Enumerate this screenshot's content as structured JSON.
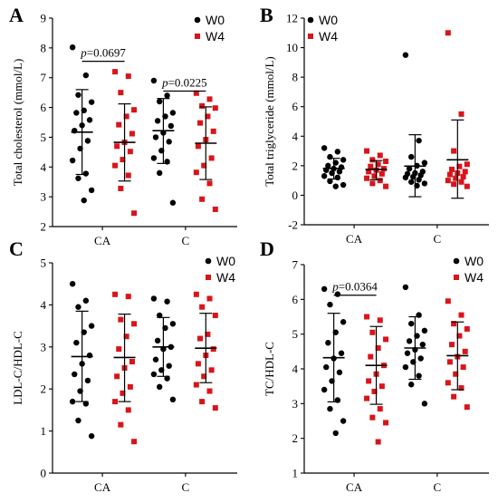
{
  "colors": {
    "W0": "#000000",
    "W4": "#d9141a"
  },
  "chart_data": [
    {
      "panel": "A",
      "type": "scatter",
      "ylabel": "Total cholesterol (mmol/L)",
      "ylim": [
        2,
        9
      ],
      "yticks": [
        2,
        3,
        4,
        5,
        6,
        7,
        8,
        9
      ],
      "categories": [
        "CA",
        "C"
      ],
      "legend": [
        "W0",
        "W4"
      ],
      "groups": [
        {
          "category": "CA",
          "series": "W0",
          "mean": 5.17,
          "sd_low": 3.75,
          "sd_high": 6.6,
          "values": [
            8.02,
            7.08,
            6.42,
            6.18,
            5.9,
            5.82,
            5.58,
            5.4,
            5.22,
            4.88,
            4.62,
            4.22,
            3.78,
            3.62,
            3.22,
            2.88
          ]
        },
        {
          "category": "CA",
          "series": "W4",
          "mean": 4.83,
          "sd_low": 3.53,
          "sd_high": 6.12,
          "values": [
            7.2,
            7.05,
            6.5,
            5.92,
            5.7,
            5.42,
            5.12,
            4.83,
            4.7,
            4.52,
            4.25,
            4.05,
            3.72,
            3.28,
            2.45
          ]
        },
        {
          "category": "C",
          "series": "W0",
          "mean": 5.22,
          "sd_low": 4.12,
          "sd_high": 6.3,
          "values": [
            6.9,
            6.4,
            6.2,
            5.82,
            5.7,
            5.55,
            5.38,
            5.15,
            5.0,
            4.85,
            4.55,
            4.3,
            4.18,
            3.8,
            2.8
          ]
        },
        {
          "category": "C",
          "series": "W4",
          "mean": 4.8,
          "sd_low": 3.58,
          "sd_high": 6.02,
          "values": [
            6.48,
            6.28,
            6.05,
            5.98,
            5.7,
            5.48,
            5.2,
            4.92,
            4.7,
            4.3,
            4.05,
            3.82,
            3.45,
            2.92,
            2.58
          ]
        }
      ],
      "annotations": [
        {
          "p": "p",
          "text": "=0.0697",
          "between": [
            0,
            1
          ],
          "y": 7.55
        },
        {
          "p": "p",
          "text": "=0.0225",
          "between": [
            2,
            3
          ],
          "y": 6.55
        }
      ]
    },
    {
      "panel": "B",
      "type": "scatter",
      "ylabel": "Total triglyceride (mmol/L)",
      "ylim": [
        -2,
        12
      ],
      "yticks": [
        -2,
        0,
        2,
        4,
        6,
        8,
        10,
        12
      ],
      "categories": [
        "CA",
        "C"
      ],
      "legend": [
        "W0",
        "W4"
      ],
      "groups": [
        {
          "category": "CA",
          "series": "W0",
          "mean": 1.82,
          "sd_low": 1.1,
          "sd_high": 2.5,
          "values": [
            3.2,
            2.95,
            2.6,
            2.4,
            2.2,
            2.0,
            1.9,
            1.8,
            1.7,
            1.6,
            1.5,
            1.3,
            1.2,
            0.95,
            0.7,
            0.6
          ]
        },
        {
          "category": "CA",
          "series": "W4",
          "mean": 1.75,
          "sd_low": 1.05,
          "sd_high": 2.35,
          "values": [
            3.0,
            2.7,
            2.4,
            2.3,
            2.1,
            1.95,
            1.8,
            1.7,
            1.6,
            1.45,
            1.3,
            1.15,
            1.0,
            0.8,
            0.6
          ]
        },
        {
          "category": "C",
          "series": "W0",
          "mean": 1.97,
          "sd_low": -0.1,
          "sd_high": 4.1,
          "values": [
            9.5,
            3.7,
            2.6,
            2.2,
            2.0,
            1.8,
            1.6,
            1.5,
            1.45,
            1.35,
            1.25,
            1.2,
            1.05,
            0.9,
            0.8,
            0.65
          ]
        },
        {
          "category": "C",
          "series": "W4",
          "mean": 2.4,
          "sd_low": -0.2,
          "sd_high": 5.1,
          "values": [
            11.0,
            5.5,
            3.0,
            2.1,
            1.95,
            1.75,
            1.6,
            1.5,
            1.4,
            1.25,
            1.15,
            1.0,
            0.9,
            0.75,
            0.6
          ]
        }
      ],
      "annotations": []
    },
    {
      "panel": "C",
      "type": "scatter",
      "ylabel": "LDL-C/HDL-C",
      "ylim": [
        0,
        5
      ],
      "yticks": [
        0,
        1,
        2,
        3,
        4,
        5
      ],
      "categories": [
        "CA",
        "C"
      ],
      "legend": [
        "W0",
        "W4"
      ],
      "groups": [
        {
          "category": "CA",
          "series": "W0",
          "mean": 2.77,
          "sd_low": 1.7,
          "sd_high": 3.85,
          "values": [
            4.5,
            4.1,
            3.95,
            3.5,
            3.35,
            3.1,
            2.8,
            2.6,
            2.35,
            2.2,
            1.95,
            1.7,
            1.65,
            1.25,
            0.88
          ]
        },
        {
          "category": "CA",
          "series": "W4",
          "mean": 2.75,
          "sd_low": 1.7,
          "sd_high": 3.78,
          "values": [
            4.25,
            4.2,
            3.65,
            3.55,
            3.25,
            2.95,
            2.65,
            2.5,
            2.3,
            2.05,
            1.9,
            1.7,
            1.5,
            1.15,
            0.75
          ]
        },
        {
          "category": "C",
          "series": "W0",
          "mean": 3.0,
          "sd_low": 2.3,
          "sd_high": 3.7,
          "values": [
            4.15,
            4.08,
            3.75,
            3.55,
            3.45,
            3.15,
            3.0,
            2.95,
            2.7,
            2.55,
            2.45,
            2.35,
            2.25,
            2.05,
            1.75
          ]
        },
        {
          "category": "C",
          "series": "W4",
          "mean": 2.97,
          "sd_low": 2.15,
          "sd_high": 3.8,
          "values": [
            4.25,
            4.15,
            3.95,
            3.75,
            3.3,
            3.2,
            2.95,
            2.8,
            2.6,
            2.45,
            2.3,
            2.1,
            1.95,
            1.7,
            1.55
          ]
        }
      ],
      "annotations": []
    },
    {
      "panel": "D",
      "type": "scatter",
      "ylabel": "TC/HDL-C",
      "ylim": [
        1,
        7
      ],
      "yticks": [
        1,
        2,
        3,
        4,
        5,
        6,
        7
      ],
      "categories": [
        "CA",
        "C"
      ],
      "legend": [
        "W0",
        "W4"
      ],
      "groups": [
        {
          "category": "CA",
          "series": "W0",
          "mean": 4.32,
          "sd_low": 3.05,
          "sd_high": 5.6,
          "values": [
            6.3,
            6.15,
            5.85,
            5.35,
            5.05,
            4.75,
            4.45,
            4.3,
            4.05,
            3.9,
            3.65,
            3.4,
            3.1,
            2.85,
            2.5,
            2.15
          ]
        },
        {
          "category": "CA",
          "series": "W4",
          "mean": 4.1,
          "sd_low": 2.98,
          "sd_high": 5.22,
          "values": [
            5.5,
            5.4,
            5.05,
            4.85,
            4.6,
            4.35,
            4.1,
            3.85,
            3.65,
            3.5,
            3.35,
            3.15,
            2.85,
            2.6,
            2.45,
            1.9
          ]
        },
        {
          "category": "C",
          "series": "W0",
          "mean": 4.6,
          "sd_low": 3.7,
          "sd_high": 5.5,
          "values": [
            6.35,
            5.55,
            5.3,
            5.1,
            4.95,
            4.8,
            4.7,
            4.55,
            4.45,
            4.3,
            4.2,
            4.05,
            3.8,
            3.55,
            3.0
          ]
        },
        {
          "category": "C",
          "series": "W4",
          "mean": 4.38,
          "sd_low": 3.4,
          "sd_high": 5.35,
          "values": [
            5.95,
            5.55,
            5.3,
            5.15,
            4.95,
            4.7,
            4.5,
            4.35,
            4.2,
            4.05,
            3.85,
            3.6,
            3.45,
            3.2,
            2.9
          ]
        }
      ],
      "annotations": [
        {
          "p": "p",
          "text": "=0.0364",
          "between": [
            0,
            1
          ],
          "y": 6.12
        }
      ]
    }
  ]
}
